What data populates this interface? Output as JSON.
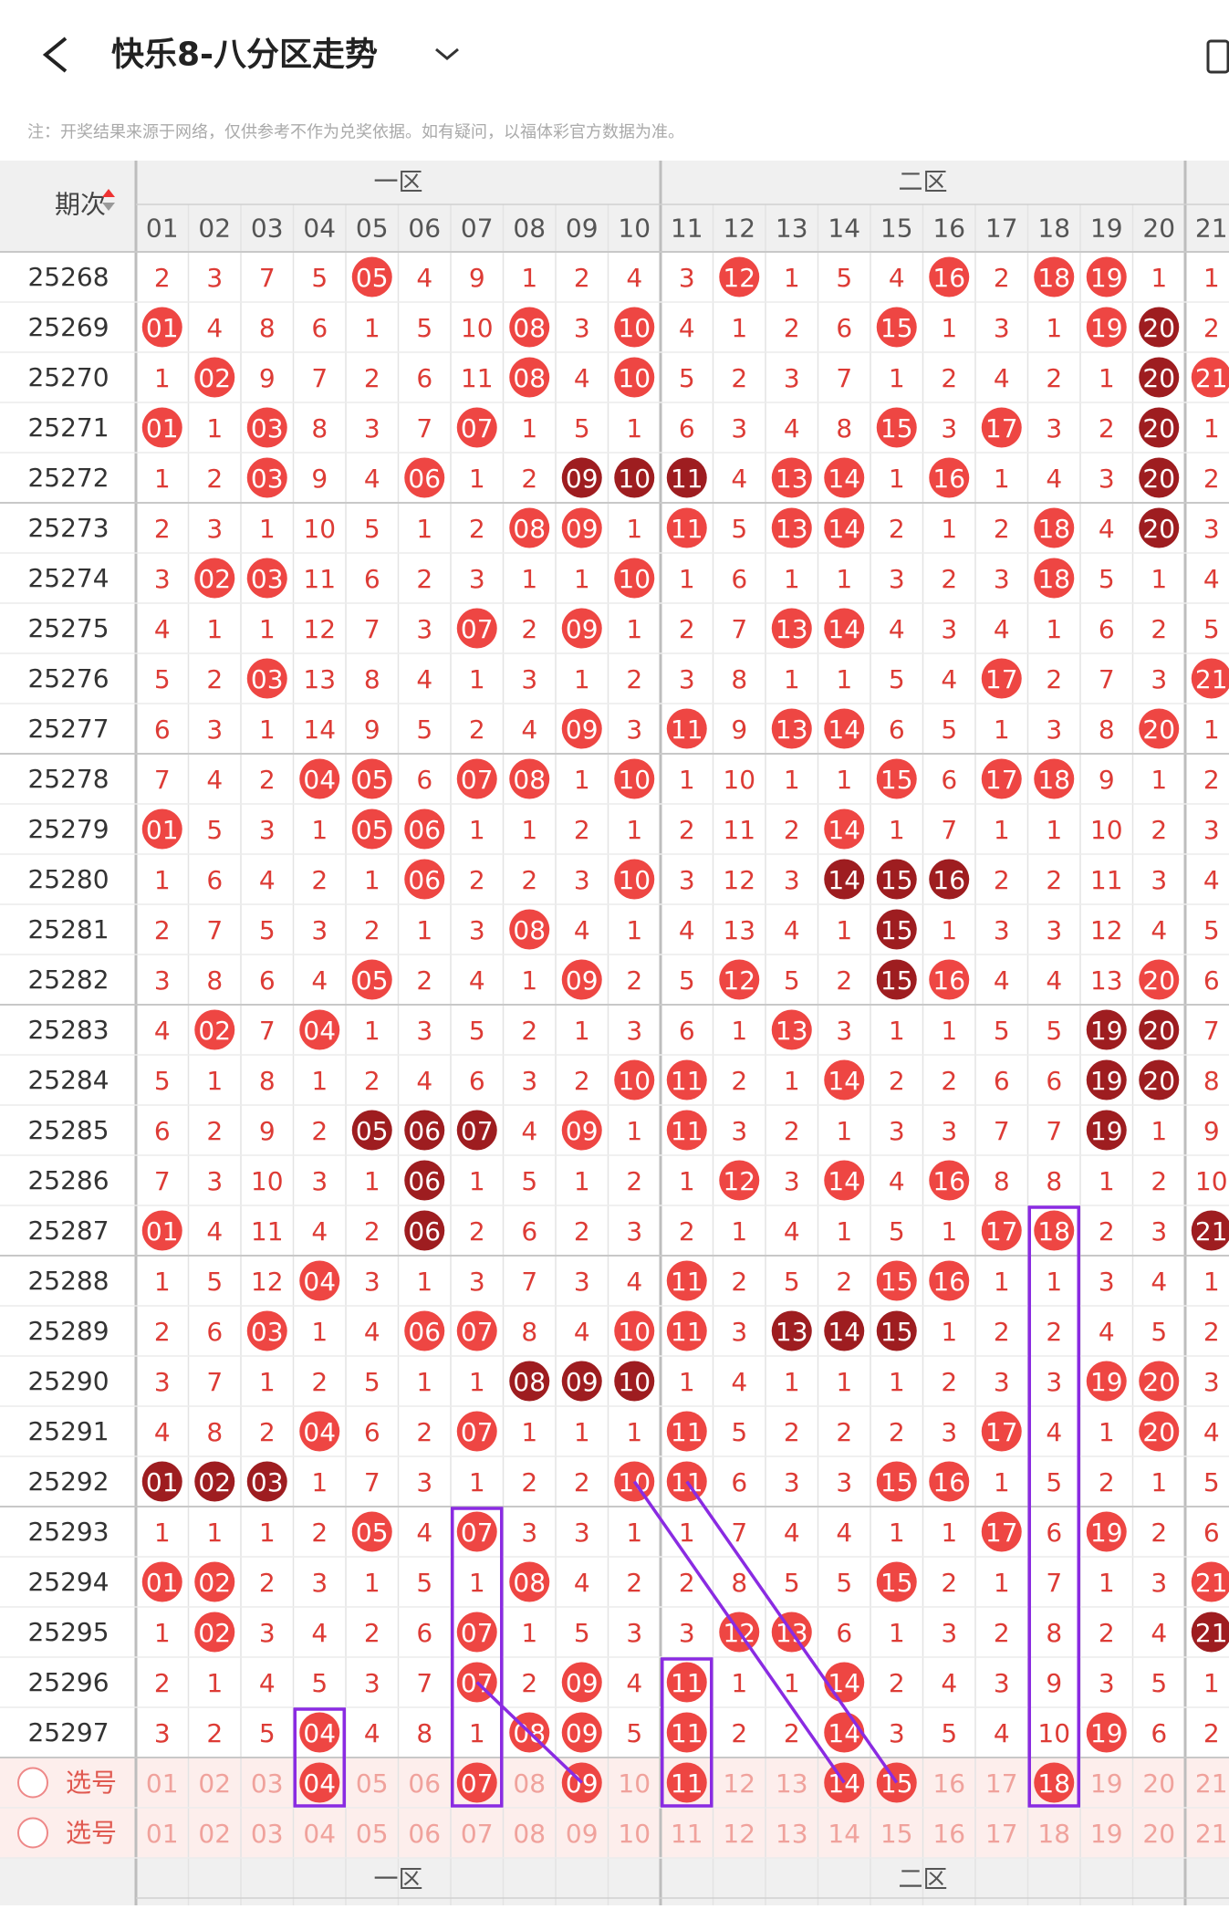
{
  "header": {
    "title": "快乐8-八分区走势",
    "note": "注：开奖结果来源于网络，仅供参考不作为兑奖依据。如有疑问，以福体彩官方数据为准。"
  },
  "table": {
    "issue_header": "期次",
    "zones": [
      "一区",
      "二区"
    ],
    "columns": [
      "01",
      "02",
      "03",
      "04",
      "05",
      "06",
      "07",
      "08",
      "09",
      "10",
      "11",
      "12",
      "13",
      "14",
      "15",
      "16",
      "17",
      "18",
      "19",
      "20",
      "21"
    ],
    "rows": [
      {
        "issue": "25268",
        "cells": [
          "2",
          "3",
          "7",
          "5",
          "05",
          "4",
          "9",
          "1",
          "2",
          "4",
          "3",
          "12",
          "1",
          "5",
          "4",
          "16",
          "2",
          "18",
          "19",
          "1",
          "1"
        ],
        "red": [
          4,
          11,
          15,
          17,
          18
        ],
        "dark": []
      },
      {
        "issue": "25269",
        "cells": [
          "01",
          "4",
          "8",
          "6",
          "1",
          "5",
          "10",
          "08",
          "3",
          "10",
          "4",
          "1",
          "2",
          "6",
          "15",
          "1",
          "3",
          "1",
          "19",
          "20",
          "2"
        ],
        "red": [
          0,
          7,
          9,
          14,
          18
        ],
        "dark": [
          19
        ]
      },
      {
        "issue": "25270",
        "cells": [
          "1",
          "02",
          "9",
          "7",
          "2",
          "6",
          "11",
          "08",
          "4",
          "10",
          "5",
          "2",
          "3",
          "7",
          "1",
          "2",
          "4",
          "2",
          "1",
          "20",
          "21"
        ],
        "red": [
          1,
          7,
          9,
          20
        ],
        "dark": [
          19
        ]
      },
      {
        "issue": "25271",
        "cells": [
          "01",
          "1",
          "03",
          "8",
          "3",
          "7",
          "07",
          "1",
          "5",
          "1",
          "6",
          "3",
          "4",
          "8",
          "15",
          "3",
          "17",
          "3",
          "2",
          "20",
          "1"
        ],
        "red": [
          0,
          2,
          6,
          14,
          16
        ],
        "dark": [
          19
        ]
      },
      {
        "issue": "25272",
        "cells": [
          "1",
          "2",
          "03",
          "9",
          "4",
          "06",
          "1",
          "2",
          "09",
          "10",
          "11",
          "4",
          "13",
          "14",
          "1",
          "16",
          "1",
          "4",
          "3",
          "20",
          "2"
        ],
        "red": [
          2,
          5,
          12,
          13,
          15
        ],
        "dark": [
          8,
          9,
          10,
          19
        ]
      },
      {
        "issue": "25273",
        "cells": [
          "2",
          "3",
          "1",
          "10",
          "5",
          "1",
          "2",
          "08",
          "09",
          "1",
          "11",
          "5",
          "13",
          "14",
          "2",
          "1",
          "2",
          "18",
          "4",
          "20",
          "3"
        ],
        "red": [
          7,
          8,
          10,
          12,
          13,
          17
        ],
        "dark": [
          19
        ]
      },
      {
        "issue": "25274",
        "cells": [
          "3",
          "02",
          "03",
          "11",
          "6",
          "2",
          "3",
          "1",
          "1",
          "10",
          "1",
          "6",
          "1",
          "1",
          "3",
          "2",
          "3",
          "18",
          "5",
          "1",
          "4"
        ],
        "red": [
          1,
          2,
          9,
          17
        ],
        "dark": []
      },
      {
        "issue": "25275",
        "cells": [
          "4",
          "1",
          "1",
          "12",
          "7",
          "3",
          "07",
          "2",
          "09",
          "1",
          "2",
          "7",
          "13",
          "14",
          "4",
          "3",
          "4",
          "1",
          "6",
          "2",
          "5"
        ],
        "red": [
          6,
          8,
          12,
          13
        ],
        "dark": []
      },
      {
        "issue": "25276",
        "cells": [
          "5",
          "2",
          "03",
          "13",
          "8",
          "4",
          "1",
          "3",
          "1",
          "2",
          "3",
          "8",
          "1",
          "1",
          "5",
          "4",
          "17",
          "2",
          "7",
          "3",
          "21"
        ],
        "red": [
          2,
          16,
          20
        ],
        "dark": []
      },
      {
        "issue": "25277",
        "cells": [
          "6",
          "3",
          "1",
          "14",
          "9",
          "5",
          "2",
          "4",
          "09",
          "3",
          "11",
          "9",
          "13",
          "14",
          "6",
          "5",
          "1",
          "3",
          "8",
          "20",
          "1"
        ],
        "red": [
          8,
          10,
          12,
          13,
          19
        ],
        "dark": []
      },
      {
        "issue": "25278",
        "cells": [
          "7",
          "4",
          "2",
          "04",
          "05",
          "6",
          "07",
          "08",
          "1",
          "10",
          "1",
          "10",
          "1",
          "1",
          "15",
          "6",
          "17",
          "18",
          "9",
          "1",
          "2"
        ],
        "red": [
          3,
          4,
          6,
          7,
          9,
          14,
          16,
          17
        ],
        "dark": []
      },
      {
        "issue": "25279",
        "cells": [
          "01",
          "5",
          "3",
          "1",
          "05",
          "06",
          "1",
          "1",
          "2",
          "1",
          "2",
          "11",
          "2",
          "14",
          "1",
          "7",
          "1",
          "1",
          "10",
          "2",
          "3"
        ],
        "red": [
          0,
          4,
          5,
          13
        ],
        "dark": []
      },
      {
        "issue": "25280",
        "cells": [
          "1",
          "6",
          "4",
          "2",
          "1",
          "06",
          "2",
          "2",
          "3",
          "10",
          "3",
          "12",
          "3",
          "14",
          "15",
          "16",
          "2",
          "2",
          "11",
          "3",
          "4"
        ],
        "red": [
          5,
          9
        ],
        "dark": [
          13,
          14,
          15
        ]
      },
      {
        "issue": "25281",
        "cells": [
          "2",
          "7",
          "5",
          "3",
          "2",
          "1",
          "3",
          "08",
          "4",
          "1",
          "4",
          "13",
          "4",
          "1",
          "15",
          "1",
          "3",
          "3",
          "12",
          "4",
          "5"
        ],
        "red": [
          7
        ],
        "dark": [
          14
        ]
      },
      {
        "issue": "25282",
        "cells": [
          "3",
          "8",
          "6",
          "4",
          "05",
          "2",
          "4",
          "1",
          "09",
          "2",
          "5",
          "12",
          "5",
          "2",
          "15",
          "16",
          "4",
          "4",
          "13",
          "20",
          "6"
        ],
        "red": [
          4,
          8,
          11,
          15,
          19
        ],
        "dark": [
          14
        ]
      },
      {
        "issue": "25283",
        "cells": [
          "4",
          "02",
          "7",
          "04",
          "1",
          "3",
          "5",
          "2",
          "1",
          "3",
          "6",
          "1",
          "13",
          "3",
          "1",
          "1",
          "5",
          "5",
          "19",
          "20",
          "7"
        ],
        "red": [
          1,
          3,
          12
        ],
        "dark": [
          18,
          19
        ]
      },
      {
        "issue": "25284",
        "cells": [
          "5",
          "1",
          "8",
          "1",
          "2",
          "4",
          "6",
          "3",
          "2",
          "10",
          "11",
          "2",
          "1",
          "14",
          "2",
          "2",
          "6",
          "6",
          "19",
          "20",
          "8"
        ],
        "red": [
          9,
          10,
          13
        ],
        "dark": [
          18,
          19
        ]
      },
      {
        "issue": "25285",
        "cells": [
          "6",
          "2",
          "9",
          "2",
          "05",
          "06",
          "07",
          "4",
          "09",
          "1",
          "11",
          "3",
          "2",
          "1",
          "3",
          "3",
          "7",
          "7",
          "19",
          "1",
          "9"
        ],
        "red": [
          8,
          10
        ],
        "dark": [
          4,
          5,
          6,
          18
        ]
      },
      {
        "issue": "25286",
        "cells": [
          "7",
          "3",
          "10",
          "3",
          "1",
          "06",
          "1",
          "5",
          "1",
          "2",
          "1",
          "12",
          "3",
          "14",
          "4",
          "16",
          "8",
          "8",
          "1",
          "2",
          "10"
        ],
        "red": [
          11,
          13,
          15
        ],
        "dark": [
          5
        ]
      },
      {
        "issue": "25287",
        "cells": [
          "01",
          "4",
          "11",
          "4",
          "2",
          "06",
          "2",
          "6",
          "2",
          "3",
          "2",
          "1",
          "4",
          "1",
          "5",
          "1",
          "17",
          "18",
          "2",
          "3",
          "21"
        ],
        "red": [
          0,
          16,
          17
        ],
        "dark": [
          5,
          20
        ]
      },
      {
        "issue": "25288",
        "cells": [
          "1",
          "5",
          "12",
          "04",
          "3",
          "1",
          "3",
          "7",
          "3",
          "4",
          "11",
          "2",
          "5",
          "2",
          "15",
          "16",
          "1",
          "1",
          "3",
          "4",
          "1"
        ],
        "red": [
          3,
          10,
          14,
          15
        ],
        "dark": []
      },
      {
        "issue": "25289",
        "cells": [
          "2",
          "6",
          "03",
          "1",
          "4",
          "06",
          "07",
          "8",
          "4",
          "10",
          "11",
          "3",
          "13",
          "14",
          "15",
          "1",
          "2",
          "2",
          "4",
          "5",
          "2"
        ],
        "red": [
          2,
          5,
          6,
          9,
          10
        ],
        "dark": [
          12,
          13,
          14
        ]
      },
      {
        "issue": "25290",
        "cells": [
          "3",
          "7",
          "1",
          "2",
          "5",
          "1",
          "1",
          "08",
          "09",
          "10",
          "1",
          "4",
          "1",
          "1",
          "1",
          "2",
          "3",
          "3",
          "19",
          "20",
          "3"
        ],
        "red": [
          18,
          19
        ],
        "dark": [
          7,
          8,
          9
        ]
      },
      {
        "issue": "25291",
        "cells": [
          "4",
          "8",
          "2",
          "04",
          "6",
          "2",
          "07",
          "1",
          "1",
          "1",
          "11",
          "5",
          "2",
          "2",
          "2",
          "3",
          "17",
          "4",
          "1",
          "20",
          "4"
        ],
        "red": [
          3,
          6,
          10,
          16,
          19
        ],
        "dark": []
      },
      {
        "issue": "25292",
        "cells": [
          "01",
          "02",
          "03",
          "1",
          "7",
          "3",
          "1",
          "2",
          "2",
          "10",
          "11",
          "6",
          "3",
          "3",
          "15",
          "16",
          "1",
          "5",
          "2",
          "1",
          "5"
        ],
        "red": [
          9,
          10,
          14,
          15
        ],
        "dark": [
          0,
          1,
          2
        ]
      },
      {
        "issue": "25293",
        "cells": [
          "1",
          "1",
          "1",
          "2",
          "05",
          "4",
          "07",
          "3",
          "3",
          "1",
          "1",
          "7",
          "4",
          "4",
          "1",
          "1",
          "17",
          "6",
          "19",
          "2",
          "6"
        ],
        "red": [
          4,
          6,
          16,
          18
        ],
        "dark": []
      },
      {
        "issue": "25294",
        "cells": [
          "01",
          "02",
          "2",
          "3",
          "1",
          "5",
          "1",
          "08",
          "4",
          "2",
          "2",
          "8",
          "5",
          "5",
          "15",
          "2",
          "1",
          "7",
          "1",
          "3",
          "21"
        ],
        "red": [
          0,
          1,
          7,
          14,
          20
        ],
        "dark": []
      },
      {
        "issue": "25295",
        "cells": [
          "1",
          "02",
          "3",
          "4",
          "2",
          "6",
          "07",
          "1",
          "5",
          "3",
          "3",
          "12",
          "13",
          "6",
          "1",
          "3",
          "2",
          "8",
          "2",
          "4",
          "21"
        ],
        "red": [
          1,
          6,
          11,
          12
        ],
        "dark": [
          20
        ]
      },
      {
        "issue": "25296",
        "cells": [
          "2",
          "1",
          "4",
          "5",
          "3",
          "7",
          "07",
          "2",
          "09",
          "4",
          "11",
          "1",
          "1",
          "14",
          "2",
          "4",
          "3",
          "9",
          "3",
          "5",
          "1"
        ],
        "red": [
          6,
          8,
          10,
          13
        ],
        "dark": []
      },
      {
        "issue": "25297",
        "cells": [
          "3",
          "2",
          "5",
          "04",
          "4",
          "8",
          "1",
          "08",
          "09",
          "5",
          "11",
          "2",
          "2",
          "14",
          "3",
          "5",
          "4",
          "10",
          "19",
          "6",
          "2"
        ],
        "red": [
          3,
          7,
          8,
          10,
          13,
          18
        ],
        "dark": []
      }
    ],
    "select_rows": [
      {
        "label": "选号",
        "cells": [
          "01",
          "02",
          "03",
          "04",
          "05",
          "06",
          "07",
          "08",
          "09",
          "10",
          "11",
          "12",
          "13",
          "14",
          "15",
          "16",
          "17",
          "18",
          "19",
          "20",
          "21"
        ],
        "red": [
          3,
          6,
          8,
          10,
          13,
          14,
          17
        ]
      },
      {
        "label": "选号",
        "cells": [
          "01",
          "02",
          "03",
          "04",
          "05",
          "06",
          "07",
          "08",
          "09",
          "10",
          "11",
          "12",
          "13",
          "14",
          "15",
          "16",
          "17",
          "18",
          "19",
          "20",
          "21"
        ],
        "red": []
      }
    ]
  }
}
